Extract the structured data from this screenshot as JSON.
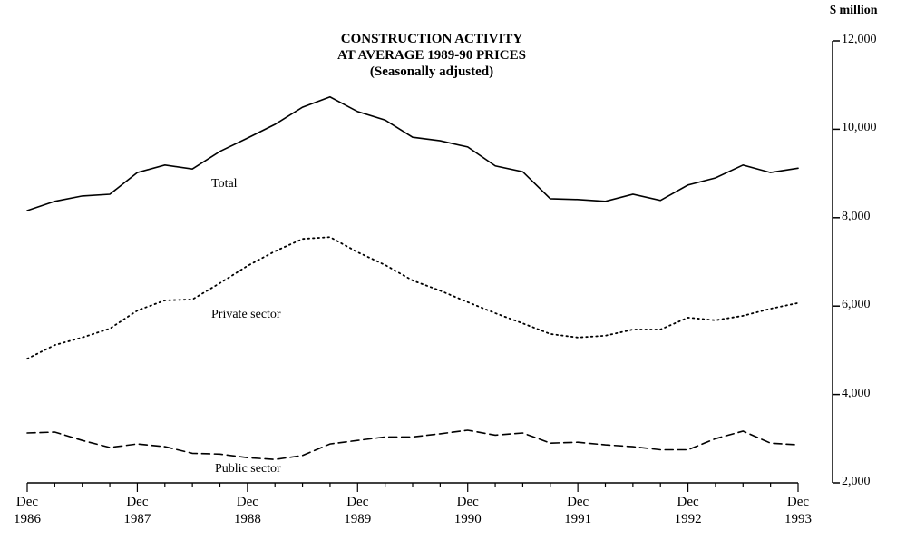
{
  "chart_data": {
    "type": "line",
    "title": [
      "CONSTRUCTION ACTIVITY",
      "AT AVERAGE 1989-90 PRICES"
    ],
    "subtitle": "(Seasonally adjusted)",
    "y_axis_label": "$ million",
    "categories": [
      "Dec 1986",
      null,
      null,
      null,
      "Dec 1987",
      null,
      null,
      null,
      "Dec 1988",
      null,
      null,
      null,
      "Dec 1989",
      null,
      null,
      null,
      "Dec 1990",
      null,
      null,
      null,
      "Dec 1991",
      null,
      null,
      null,
      "Dec 1992",
      null,
      null,
      null,
      "Dec 1993"
    ],
    "series": [
      {
        "name": "Total",
        "color": "#000000",
        "style": "solid",
        "values": [
          8160,
          8370,
          8490,
          8530,
          9020,
          9190,
          9100,
          9500,
          9800,
          10110,
          10500,
          10730,
          10400,
          10210,
          9820,
          9740,
          9600,
          9170,
          9040,
          8430,
          8410,
          8370,
          8530,
          8390,
          8740,
          8900,
          9190,
          9020,
          9120
        ]
      },
      {
        "name": "Private sector",
        "color": "#000000",
        "style": "dotted",
        "values": [
          4810,
          5120,
          5290,
          5490,
          5900,
          6130,
          6150,
          6520,
          6910,
          7240,
          7520,
          7560,
          7220,
          6930,
          6580,
          6350,
          6090,
          5840,
          5610,
          5370,
          5290,
          5330,
          5470,
          5470,
          5740,
          5680,
          5780,
          5940,
          6070
        ]
      },
      {
        "name": "Public sector",
        "color": "#000000",
        "style": "dashed",
        "values": [
          3130,
          3150,
          2960,
          2800,
          2880,
          2820,
          2670,
          2650,
          2570,
          2530,
          2620,
          2880,
          2960,
          3040,
          3040,
          3110,
          3190,
          3080,
          3130,
          2900,
          2920,
          2860,
          2820,
          2750,
          2750,
          3000,
          3170,
          2900,
          2860
        ]
      }
    ],
    "ylim": [
      2000,
      12000
    ],
    "yticks": [
      {
        "value": 2000,
        "label": "2,000"
      },
      {
        "value": 4000,
        "label": "4,000"
      },
      {
        "value": 6000,
        "label": "6,000"
      },
      {
        "value": 8000,
        "label": "8,000"
      },
      {
        "value": 10000,
        "label": "10,000"
      },
      {
        "value": 12000,
        "label": "12,000"
      }
    ],
    "y_axis_side": "right",
    "grid": false
  }
}
